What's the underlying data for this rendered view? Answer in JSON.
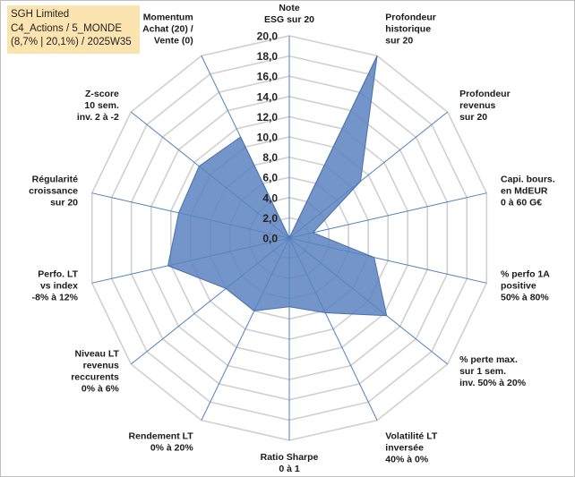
{
  "info": {
    "line1": "SGH Limited",
    "line2": "C4_Actions / 5_MONDE",
    "line3": "(8,7% | 20,1%) / 2025W35"
  },
  "chart_data": {
    "type": "radar",
    "rmax": 20,
    "tick_step": 2,
    "tick_labels": [
      "0,0",
      "2,0",
      "4,0",
      "6,0",
      "8,0",
      "10,0",
      "12,0",
      "14,0",
      "16,0",
      "18,0",
      "20,0"
    ],
    "axes": [
      {
        "label": [
          "Note",
          "ESG sur 20"
        ],
        "value": 0
      },
      {
        "label": [
          "Profondeur",
          "historique",
          "sur 20"
        ],
        "value": 20
      },
      {
        "label": [
          "Profondeur",
          "revenus",
          "sur 20"
        ],
        "value": 9
      },
      {
        "label": [
          "Capi. bours.",
          "en MdEUR",
          "0 à 60 G€"
        ],
        "value": 2.4
      },
      {
        "label": [
          "% perfo 1A",
          "positive",
          "50% à 80%"
        ],
        "value": 8.6
      },
      {
        "label": [
          "% perte max.",
          "sur 1 sem.",
          "inv. 50% à 20%"
        ],
        "value": 12.3
      },
      {
        "label": [
          "Volatilité LT",
          "inversée",
          "40% à 0%"
        ],
        "value": 8.2
      },
      {
        "label": [
          "Ratio Sharpe",
          "0 à 1"
        ],
        "value": 6.8
      },
      {
        "label": [
          "Rendement LT",
          "0% à 20%"
        ],
        "value": 8
      },
      {
        "label": [
          "Niveau LT",
          "revenus",
          "reccurents",
          "0% à 6%"
        ],
        "value": 8
      },
      {
        "label": [
          "Perfo. LT",
          "vs index",
          "-8% à 12%"
        ],
        "value": 12.3
      },
      {
        "label": [
          "Régularité",
          "croissance",
          "sur 20"
        ],
        "value": 11.2
      },
      {
        "label": [
          "Z-score",
          "10 sem.",
          "inv. 2 à -2"
        ],
        "value": 11.4
      },
      {
        "label": [
          "Momentum",
          "Achat (20) /",
          "Vente (0)"
        ],
        "value": 11.1
      }
    ],
    "colors": {
      "fill": "#5b82bf",
      "stroke": "#4a70aa",
      "grid": "#d0d0d0",
      "spoke": "#4f81bd"
    }
  }
}
